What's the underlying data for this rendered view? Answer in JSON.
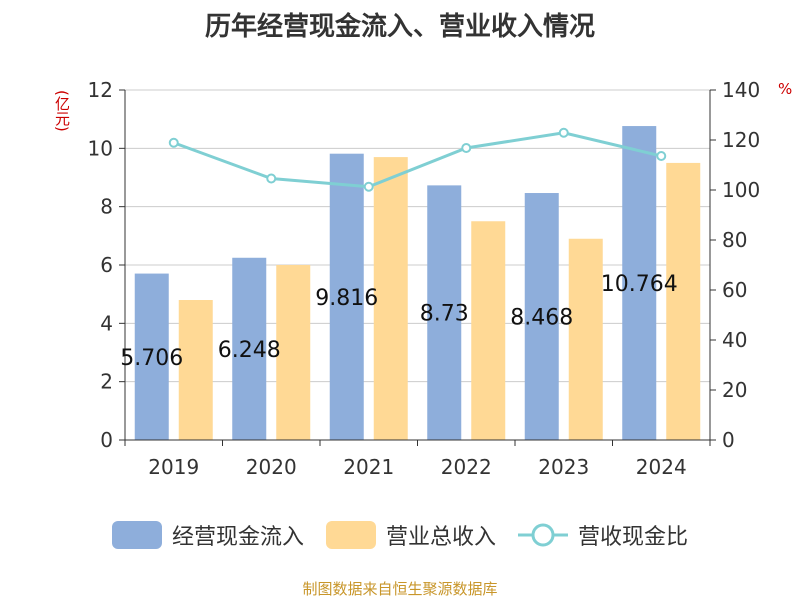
{
  "chart_data": {
    "type": "bar",
    "title": "历年经营现金流入、营业收入情况",
    "categories": [
      "2019",
      "2020",
      "2021",
      "2022",
      "2023",
      "2024"
    ],
    "series": [
      {
        "name": "经营现金流入",
        "type": "bar",
        "axis": "left",
        "values": [
          5.706,
          6.248,
          9.816,
          8.73,
          8.468,
          10.764
        ],
        "data_labels": [
          "5.706",
          "6.248",
          "9.816",
          "8.73",
          "8.468",
          "10.764"
        ],
        "color": "#8eaedb"
      },
      {
        "name": "营业总收入",
        "type": "bar",
        "axis": "left",
        "values": [
          4.8,
          6.0,
          9.7,
          7.5,
          6.9,
          9.5
        ],
        "color": "#ffd995"
      },
      {
        "name": "营收现金比",
        "type": "line",
        "axis": "right",
        "values": [
          118.9,
          104.6,
          101.3,
          116.8,
          122.9,
          113.6
        ],
        "color": "#7fcfd3"
      }
    ],
    "y_left": {
      "label": "(亿元)",
      "ylim": [
        0,
        12
      ],
      "ticks": [
        "0",
        "2",
        "4",
        "6",
        "8",
        "10",
        "12"
      ]
    },
    "y_right": {
      "label": "%",
      "ylim": [
        0,
        140
      ],
      "ticks": [
        "0",
        "20",
        "40",
        "60",
        "80",
        "100",
        "120",
        "140"
      ]
    },
    "grid": true,
    "legend_position": "bottom"
  },
  "footer": {
    "source": "制图数据来自恒生聚源数据库"
  }
}
